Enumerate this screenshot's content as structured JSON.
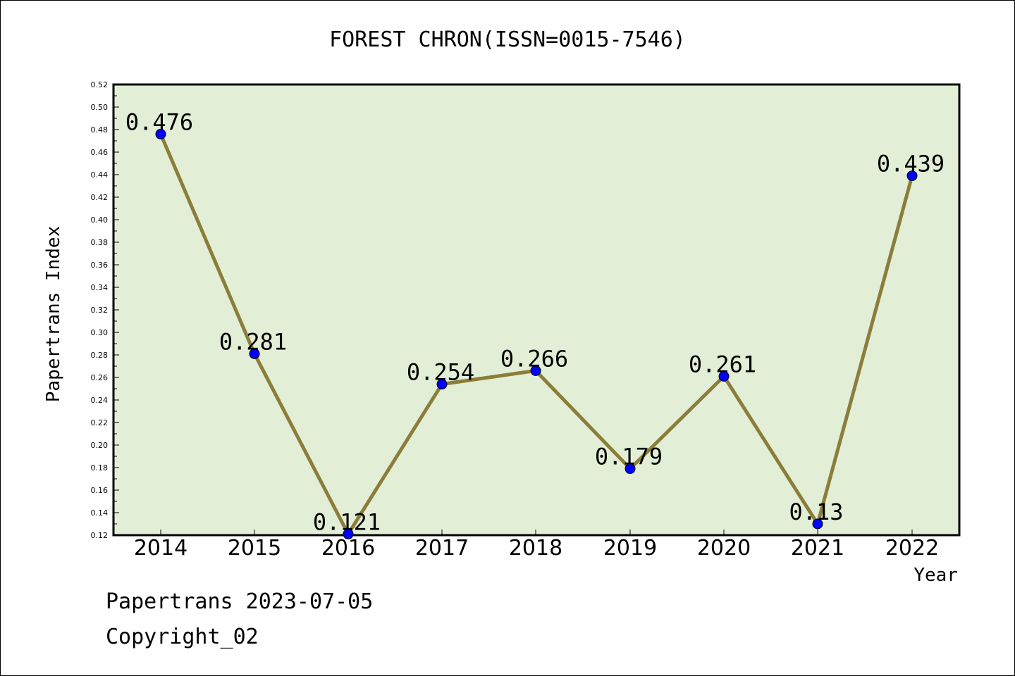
{
  "chart_data": {
    "type": "line",
    "title": "FOREST CHRON(ISSN=0015-7546)",
    "xlabel": "Year",
    "ylabel": "Papertrans Index",
    "categories": [
      "2014",
      "2015",
      "2016",
      "2017",
      "2018",
      "2019",
      "2020",
      "2021",
      "2022"
    ],
    "values": [
      0.476,
      0.281,
      0.121,
      0.254,
      0.266,
      0.179,
      0.261,
      0.13,
      0.439
    ],
    "data_labels": [
      "0.476",
      "0.281",
      "0.121",
      "0.254",
      "0.266",
      "0.179",
      "0.261",
      "0.13",
      "0.439"
    ],
    "ylim": [
      0.12,
      0.52
    ],
    "yticks": [
      "0.12",
      "0.14",
      "0.16",
      "0.18",
      "0.20",
      "0.22",
      "0.24",
      "0.26",
      "0.28",
      "0.30",
      "0.32",
      "0.34",
      "0.36",
      "0.38",
      "0.40",
      "0.42",
      "0.44",
      "0.46",
      "0.48",
      "0.50",
      "0.52"
    ],
    "grid": false,
    "colors": {
      "plot_bg": "#e2efd6",
      "line": "#8b7d3a",
      "marker": "#0000ff"
    }
  },
  "footer": {
    "line1": "Papertrans 2023-07-05",
    "line2": "Copyright_02"
  }
}
